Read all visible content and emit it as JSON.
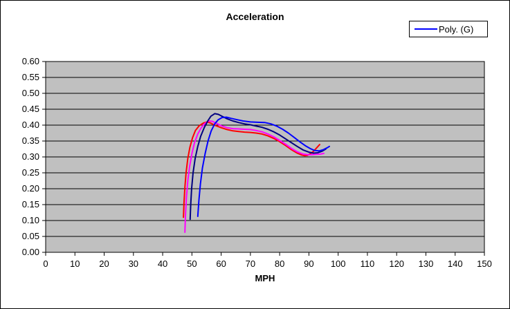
{
  "chart_data": {
    "type": "line",
    "title": "Acceleration",
    "xlabel": "MPH",
    "ylabel": "",
    "xlim": [
      0,
      150
    ],
    "ylim": [
      0.0,
      0.6
    ],
    "x_ticks": [
      "0",
      "10",
      "20",
      "30",
      "40",
      "50",
      "60",
      "70",
      "80",
      "90",
      "100",
      "110",
      "120",
      "130",
      "140",
      "150"
    ],
    "y_ticks": [
      "0.00",
      "0.05",
      "0.10",
      "0.15",
      "0.20",
      "0.25",
      "0.30",
      "0.35",
      "0.40",
      "0.45",
      "0.50",
      "0.55",
      "0.60"
    ],
    "grid": "horizontal",
    "plot_bg": "#C0C0C0",
    "axis_color": "#000000",
    "background": "#FFFFFF",
    "legend": {
      "label": "Poly. (G)",
      "color": "#0000FF",
      "position": "top-right",
      "border_color": "#000000"
    },
    "series": [
      {
        "id": "red",
        "color": "#FF0000",
        "points": [
          [
            47.1,
            0.11
          ],
          [
            47.3,
            0.155
          ],
          [
            47.6,
            0.205
          ],
          [
            48.0,
            0.25
          ],
          [
            48.6,
            0.295
          ],
          [
            49.3,
            0.33
          ],
          [
            50.2,
            0.36
          ],
          [
            51.2,
            0.383
          ],
          [
            52.5,
            0.398
          ],
          [
            54.0,
            0.407
          ],
          [
            55.2,
            0.41
          ],
          [
            56.5,
            0.406
          ],
          [
            58.0,
            0.399
          ],
          [
            60.0,
            0.392
          ],
          [
            62.0,
            0.386
          ],
          [
            64.0,
            0.382
          ],
          [
            66.0,
            0.38
          ],
          [
            68.0,
            0.378
          ],
          [
            70.0,
            0.377
          ],
          [
            72.0,
            0.375
          ],
          [
            74.0,
            0.372
          ],
          [
            76.0,
            0.366
          ],
          [
            78.0,
            0.358
          ],
          [
            80.0,
            0.348
          ],
          [
            82.0,
            0.336
          ],
          [
            84.0,
            0.323
          ],
          [
            86.0,
            0.312
          ],
          [
            87.5,
            0.306
          ],
          [
            88.5,
            0.304
          ],
          [
            89.5,
            0.305
          ],
          [
            90.5,
            0.31
          ],
          [
            91.5,
            0.317
          ],
          [
            92.5,
            0.327
          ],
          [
            93.7,
            0.339
          ]
        ]
      },
      {
        "id": "magenta",
        "color": "#FF00FF",
        "points": [
          [
            47.6,
            0.063
          ],
          [
            47.8,
            0.115
          ],
          [
            48.1,
            0.17
          ],
          [
            48.6,
            0.225
          ],
          [
            49.2,
            0.27
          ],
          [
            50.0,
            0.31
          ],
          [
            50.9,
            0.345
          ],
          [
            52.0,
            0.372
          ],
          [
            53.2,
            0.392
          ],
          [
            54.5,
            0.406
          ],
          [
            55.8,
            0.413
          ],
          [
            57.0,
            0.412
          ],
          [
            58.5,
            0.405
          ],
          [
            60.0,
            0.398
          ],
          [
            62.0,
            0.392
          ],
          [
            64.0,
            0.389
          ],
          [
            66.0,
            0.388
          ],
          [
            68.0,
            0.387
          ],
          [
            70.0,
            0.386
          ],
          [
            72.0,
            0.383
          ],
          [
            74.0,
            0.379
          ],
          [
            76.0,
            0.372
          ],
          [
            78.0,
            0.363
          ],
          [
            80.0,
            0.352
          ],
          [
            82.0,
            0.34
          ],
          [
            84.0,
            0.327
          ],
          [
            86.0,
            0.316
          ],
          [
            88.0,
            0.309
          ],
          [
            89.5,
            0.307
          ],
          [
            91.0,
            0.307
          ],
          [
            92.5,
            0.308
          ],
          [
            94.0,
            0.309
          ],
          [
            95.1,
            0.311
          ]
        ]
      },
      {
        "id": "navy",
        "color": "#000080",
        "points": [
          [
            49.4,
            0.104
          ],
          [
            49.6,
            0.15
          ],
          [
            49.9,
            0.2
          ],
          [
            50.4,
            0.25
          ],
          [
            51.1,
            0.295
          ],
          [
            52.0,
            0.333
          ],
          [
            53.0,
            0.365
          ],
          [
            54.2,
            0.392
          ],
          [
            55.4,
            0.413
          ],
          [
            56.5,
            0.428
          ],
          [
            57.8,
            0.436
          ],
          [
            59.0,
            0.434
          ],
          [
            60.5,
            0.427
          ],
          [
            62.0,
            0.42
          ],
          [
            64.0,
            0.413
          ],
          [
            66.0,
            0.408
          ],
          [
            68.0,
            0.404
          ],
          [
            70.0,
            0.401
          ],
          [
            72.0,
            0.397
          ],
          [
            74.0,
            0.393
          ],
          [
            76.0,
            0.387
          ],
          [
            78.0,
            0.379
          ],
          [
            80.0,
            0.369
          ],
          [
            82.0,
            0.357
          ],
          [
            84.0,
            0.345
          ],
          [
            86.0,
            0.333
          ],
          [
            88.0,
            0.322
          ],
          [
            90.0,
            0.315
          ],
          [
            91.5,
            0.312
          ],
          [
            93.0,
            0.313
          ],
          [
            94.5,
            0.318
          ],
          [
            95.8,
            0.325
          ]
        ]
      },
      {
        "id": "poly-g",
        "name": "Poly. (G)",
        "color": "#0000FF",
        "points": [
          [
            52.0,
            0.113
          ],
          [
            52.4,
            0.165
          ],
          [
            52.9,
            0.215
          ],
          [
            53.6,
            0.265
          ],
          [
            54.5,
            0.31
          ],
          [
            55.5,
            0.35
          ],
          [
            56.6,
            0.382
          ],
          [
            57.8,
            0.404
          ],
          [
            59.0,
            0.417
          ],
          [
            60.3,
            0.424
          ],
          [
            61.8,
            0.425
          ],
          [
            63.5,
            0.421
          ],
          [
            65.5,
            0.417
          ],
          [
            67.5,
            0.413
          ],
          [
            70.0,
            0.41
          ],
          [
            72.5,
            0.409
          ],
          [
            75.0,
            0.408
          ],
          [
            77.0,
            0.404
          ],
          [
            79.0,
            0.397
          ],
          [
            81.0,
            0.387
          ],
          [
            83.0,
            0.375
          ],
          [
            85.0,
            0.361
          ],
          [
            87.0,
            0.347
          ],
          [
            89.0,
            0.334
          ],
          [
            90.5,
            0.326
          ],
          [
            92.0,
            0.32
          ],
          [
            93.5,
            0.319
          ],
          [
            95.0,
            0.323
          ],
          [
            96.3,
            0.329
          ],
          [
            97.0,
            0.333
          ]
        ]
      }
    ]
  }
}
